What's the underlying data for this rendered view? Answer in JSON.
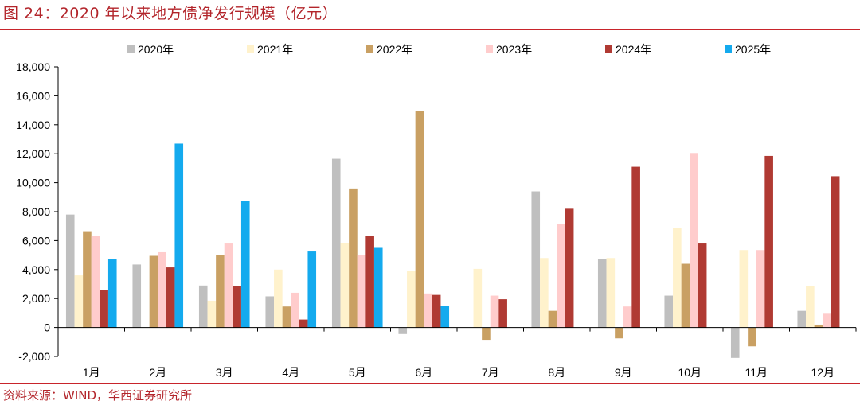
{
  "header": {
    "title": "图 24：2020 年以来地方债净发行规模（亿元）"
  },
  "footer": {
    "source": "资料来源：WIND，华西证券研究所"
  },
  "chart_data": {
    "type": "bar",
    "title": "2020 年以来地方债净发行规模（亿元）",
    "xlabel": "",
    "ylabel": "",
    "ylim": [
      -2000,
      18000
    ],
    "yticks": [
      -2000,
      0,
      2000,
      4000,
      6000,
      8000,
      10000,
      12000,
      14000,
      16000,
      18000
    ],
    "ytick_labels": [
      "-2,000",
      "0",
      "2,000",
      "4,000",
      "6,000",
      "8,000",
      "10,000",
      "12,000",
      "14,000",
      "16,000",
      "18,000"
    ],
    "legend_position": "top",
    "categories": [
      "1月",
      "2月",
      "3月",
      "4月",
      "5月",
      "6月",
      "7月",
      "8月",
      "9月",
      "10月",
      "11月",
      "12月"
    ],
    "series": [
      {
        "name": "2020年",
        "color": "#bfbfbf",
        "values": [
          7800,
          4350,
          2900,
          2150,
          11650,
          -450,
          null,
          9400,
          4750,
          2200,
          -2100,
          1150
        ]
      },
      {
        "name": "2021年",
        "color": "#fff2cc",
        "values": [
          3600,
          null,
          1850,
          4000,
          5850,
          3900,
          4050,
          4800,
          4800,
          6850,
          5350,
          2850
        ]
      },
      {
        "name": "2022年",
        "color": "#c9a063",
        "values": [
          6650,
          4950,
          5000,
          1450,
          9600,
          14950,
          -850,
          1150,
          -750,
          4400,
          -1300,
          200
        ]
      },
      {
        "name": "2023年",
        "color": "#ffcccc",
        "values": [
          6350,
          5200,
          5800,
          2400,
          5000,
          2350,
          2200,
          7150,
          1450,
          12050,
          5350,
          950
        ]
      },
      {
        "name": "2024年",
        "color": "#b03a33",
        "values": [
          2600,
          4150,
          2850,
          550,
          6350,
          2250,
          1950,
          8200,
          11100,
          5800,
          11850,
          10450
        ]
      },
      {
        "name": "2025年",
        "color": "#14aaee",
        "values": [
          4750,
          12700,
          8750,
          5250,
          5500,
          1500,
          null,
          null,
          null,
          null,
          null,
          null
        ]
      }
    ]
  }
}
